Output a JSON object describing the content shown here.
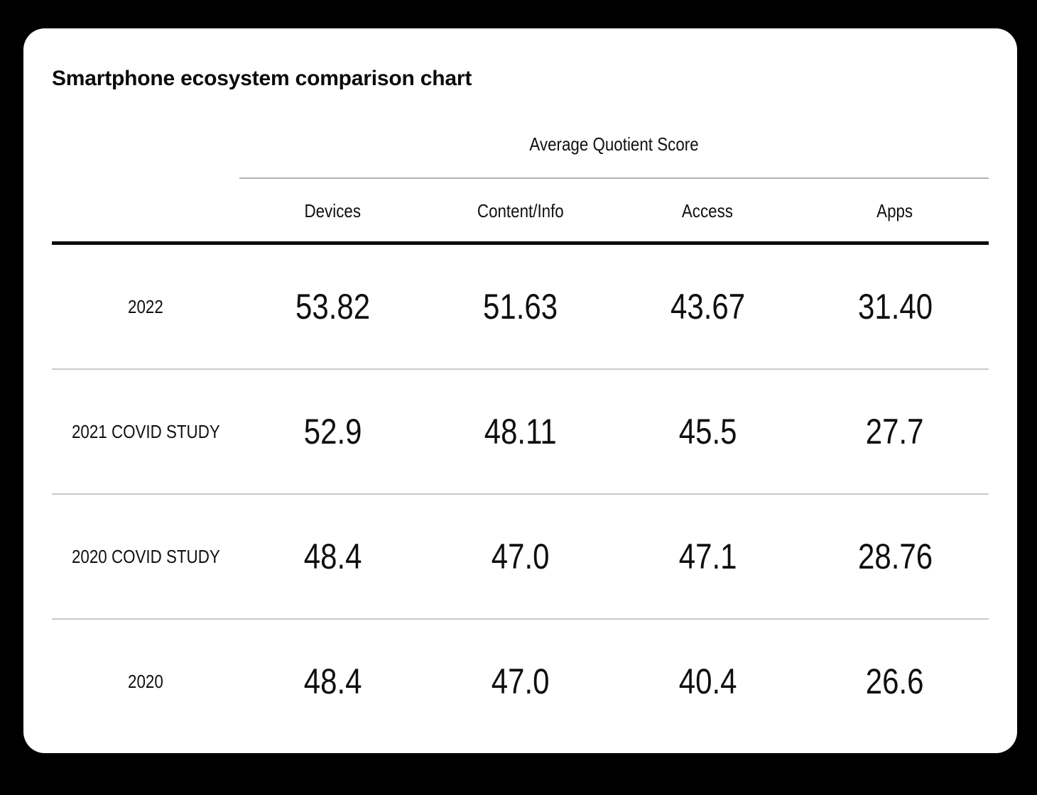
{
  "chart_data": {
    "type": "table",
    "title": "Smartphone ecosystem comparison chart",
    "column_group_label": "Average Quotient Score",
    "columns": [
      "Devices",
      "Content/Info",
      "Access",
      "Apps"
    ],
    "rows": [
      {
        "label": "2022",
        "values": [
          "53.82",
          "51.63",
          "43.67",
          "31.40"
        ],
        "numeric": [
          53.82,
          51.63,
          43.67,
          31.4
        ]
      },
      {
        "label": "2021 COVID STUDY",
        "values": [
          "52.9",
          "48.11",
          "45.5",
          "27.7"
        ],
        "numeric": [
          52.9,
          48.11,
          45.5,
          27.7
        ]
      },
      {
        "label": "2020 COVID STUDY",
        "values": [
          "48.4",
          "47.0",
          "47.1",
          "28.76"
        ],
        "numeric": [
          48.4,
          47.0,
          47.1,
          28.76
        ]
      },
      {
        "label": "2020",
        "values": [
          "48.4",
          "47.0",
          "40.4",
          "26.6"
        ],
        "numeric": [
          48.4,
          47.0,
          40.4,
          26.6
        ]
      }
    ],
    "layout": {
      "legend": "none",
      "grid": "horizontal-row-separators"
    }
  },
  "colors": {
    "page_background": "#000000",
    "card_background": "#ffffff",
    "text": "#0d0d0d",
    "heavy_rule": "#0b0b0b",
    "light_rule": "#c9c9c9",
    "group_rule": "#b3b3b3"
  }
}
